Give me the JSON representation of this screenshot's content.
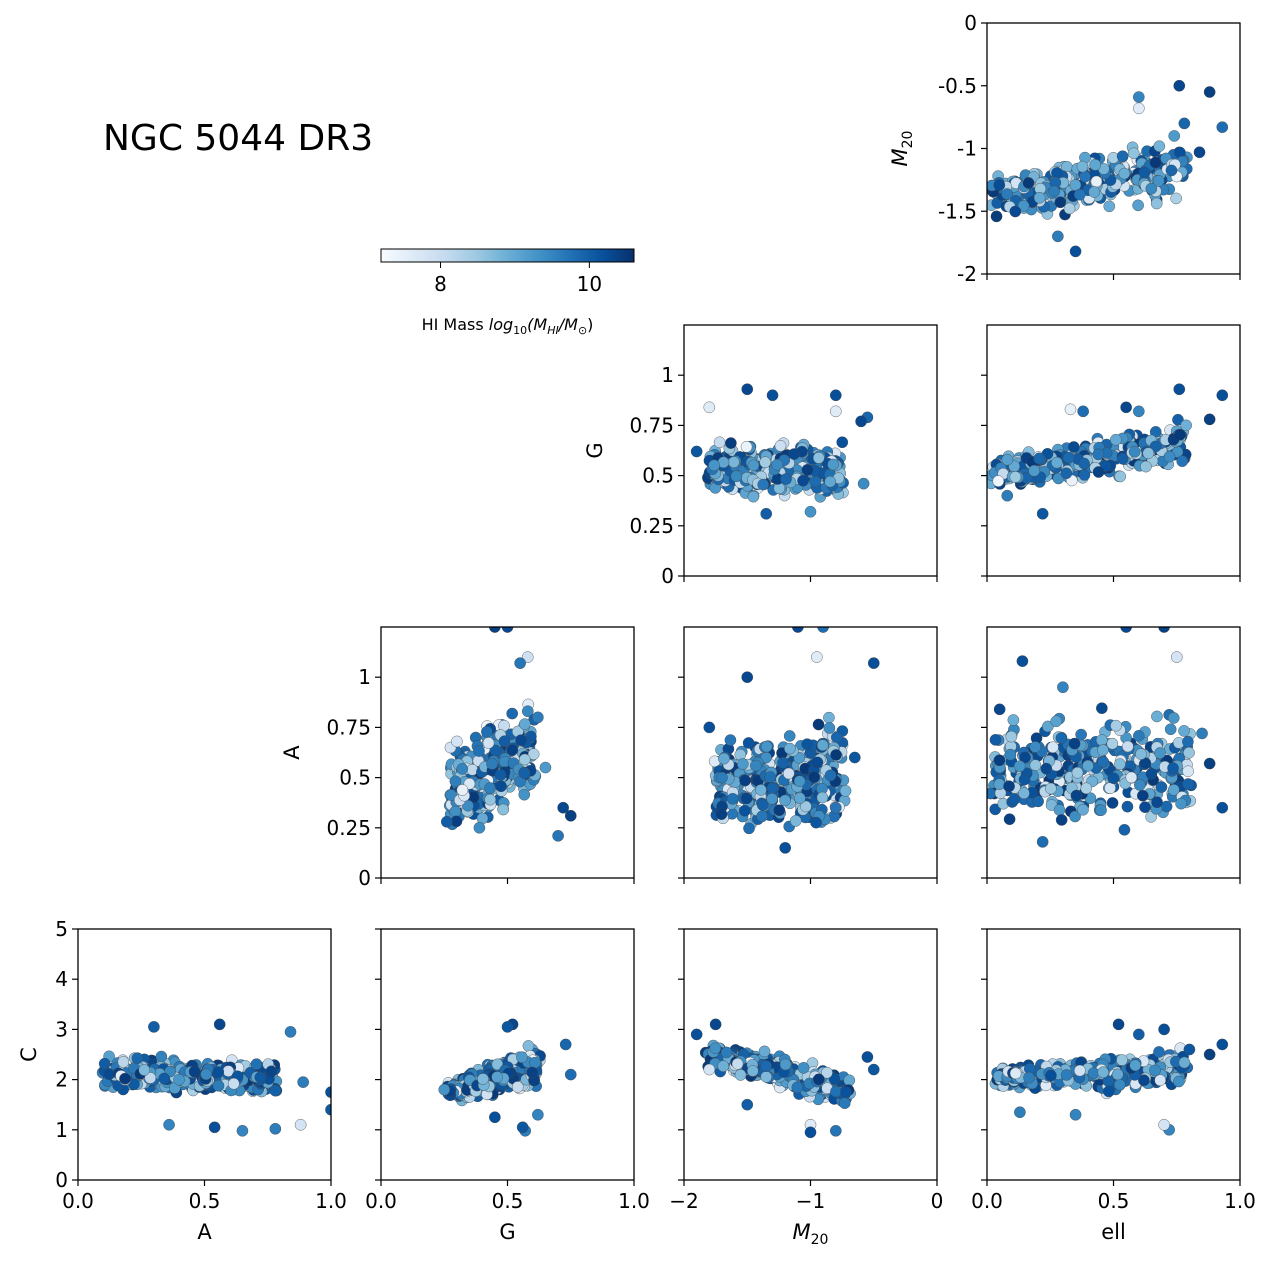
{
  "figure": {
    "title": "NGC 5044 DR3",
    "colormap": [
      "#f7fbff",
      "#deebf7",
      "#c6dbef",
      "#9ecae1",
      "#6baed6",
      "#4292c6",
      "#2171b5",
      "#08519c",
      "#08306b"
    ],
    "marker_edge_color": "#444444"
  },
  "colorbar": {
    "label_prefix": "HI Mass ",
    "label_func": "log",
    "label_sub": "10",
    "label_arg": "(M",
    "label_arg_sub": "HI",
    "label_mid": "/M",
    "label_sun": "⊙",
    "label_close": ")",
    "range": [
      7.2,
      10.6
    ],
    "ticks": [
      {
        "value": 8,
        "label": "8"
      },
      {
        "value": 10,
        "label": "10"
      }
    ]
  },
  "chart_data": [
    {
      "type": "scatter",
      "id": "M20_ell",
      "row": 0,
      "col": 3,
      "xlabel": "",
      "ylabel": "M",
      "ylabel_sub": "20",
      "xlim": [
        0,
        1
      ],
      "ylim": [
        -2,
        0
      ],
      "xticks": [
        {
          "value": 0,
          "label": ""
        },
        {
          "value": 0.5,
          "label": ""
        },
        {
          "value": 1,
          "label": ""
        }
      ],
      "yticks": [
        {
          "value": 0,
          "label": "0"
        },
        {
          "value": -0.5,
          "label": "-0.5"
        },
        {
          "value": -1,
          "label": "-1"
        },
        {
          "value": -1.5,
          "label": "-1.5"
        },
        {
          "value": -2,
          "label": "-2"
        }
      ],
      "cloud": {
        "x": [
          0.02,
          0.78
        ],
        "y_bottom": [
          -1.62,
          -1.45
        ],
        "y_top": [
          -1.15,
          -0.88
        ]
      },
      "points": [
        [
          0.76,
          -0.5,
          10.3
        ],
        [
          0.88,
          -0.55,
          10.4
        ],
        [
          0.93,
          -0.83,
          9.8
        ],
        [
          0.84,
          -1.03,
          10.3
        ],
        [
          0.6,
          -0.59,
          9.5
        ],
        [
          0.78,
          -0.8,
          9.9
        ],
        [
          0.35,
          -1.82,
          10.2
        ],
        [
          0.28,
          -1.7,
          9.6
        ],
        [
          0.6,
          -0.68,
          7.6
        ],
        [
          0.74,
          -0.9,
          9.2
        ]
      ]
    },
    {
      "type": "scatter",
      "id": "G_M20",
      "row": 1,
      "col": 2,
      "xlabel": "",
      "ylabel": "G",
      "xlim": [
        -2,
        0
      ],
      "ylim": [
        0,
        1.25
      ],
      "xticks": [
        {
          "value": -2,
          "label": ""
        },
        {
          "value": -1,
          "label": ""
        },
        {
          "value": 0,
          "label": ""
        }
      ],
      "yticks": [
        {
          "value": 0,
          "label": "0"
        },
        {
          "value": 0.25,
          "label": "0.25"
        },
        {
          "value": 0.5,
          "label": "0.5"
        },
        {
          "value": 0.75,
          "label": "0.75"
        },
        {
          "value": 1,
          "label": "1"
        }
      ],
      "cloud": {
        "x": [
          -1.8,
          -0.75
        ],
        "y_bottom": [
          0.38,
          0.34
        ],
        "y_top": [
          0.68,
          0.7
        ]
      },
      "points": [
        [
          -1.5,
          0.93,
          10.3
        ],
        [
          -1.3,
          0.9,
          10.2
        ],
        [
          -0.8,
          0.9,
          10.2
        ],
        [
          -0.55,
          0.79,
          9.9
        ],
        [
          -0.6,
          0.77,
          10.3
        ],
        [
          -1.8,
          0.84,
          7.6
        ],
        [
          -1.0,
          0.32,
          9.3
        ],
        [
          -1.35,
          0.31,
          10.0
        ],
        [
          -0.58,
          0.46,
          9.4
        ],
        [
          -1.9,
          0.62,
          10.1
        ],
        [
          -0.8,
          0.82,
          7.6
        ]
      ]
    },
    {
      "type": "scatter",
      "id": "G_ell",
      "row": 1,
      "col": 3,
      "xlabel": "",
      "ylabel": "",
      "xlim": [
        0,
        1
      ],
      "ylim": [
        0,
        1.25
      ],
      "xticks": [
        {
          "value": 0,
          "label": ""
        },
        {
          "value": 0.5,
          "label": ""
        },
        {
          "value": 1,
          "label": ""
        }
      ],
      "yticks": [
        {
          "value": 0,
          "label": ""
        },
        {
          "value": 0.25,
          "label": ""
        },
        {
          "value": 0.5,
          "label": ""
        },
        {
          "value": 0.75,
          "label": ""
        },
        {
          "value": 1,
          "label": ""
        }
      ],
      "cloud": {
        "x": [
          0.02,
          0.78
        ],
        "y_bottom": [
          0.4,
          0.5
        ],
        "y_top": [
          0.6,
          0.82
        ]
      },
      "points": [
        [
          0.93,
          0.9,
          10.2
        ],
        [
          0.76,
          0.93,
          10.2
        ],
        [
          0.88,
          0.78,
          10.4
        ],
        [
          0.55,
          0.84,
          10.3
        ],
        [
          0.6,
          0.82,
          9.5
        ],
        [
          0.33,
          0.83,
          7.5
        ],
        [
          0.22,
          0.31,
          10.1
        ],
        [
          0.08,
          0.4,
          9.6
        ],
        [
          0.38,
          0.82,
          9.8
        ]
      ]
    },
    {
      "type": "scatter",
      "id": "A_G",
      "row": 2,
      "col": 1,
      "xlabel": "",
      "ylabel": "A",
      "xlim": [
        0,
        1
      ],
      "ylim": [
        0,
        1.25
      ],
      "xticks": [
        {
          "value": 0,
          "label": ""
        },
        {
          "value": 0.5,
          "label": ""
        },
        {
          "value": 1,
          "label": ""
        }
      ],
      "yticks": [
        {
          "value": 0,
          "label": "0"
        },
        {
          "value": 0.25,
          "label": "0.25"
        },
        {
          "value": 0.5,
          "label": "0.5"
        },
        {
          "value": 0.75,
          "label": "0.75"
        },
        {
          "value": 1,
          "label": "1"
        }
      ],
      "cloud": {
        "x": [
          0.28,
          0.6
        ],
        "y_bottom": [
          0.17,
          0.35
        ],
        "y_top": [
          0.68,
          0.95
        ]
      },
      "points": [
        [
          0.45,
          1.25,
          10.4
        ],
        [
          0.5,
          1.25,
          10.3
        ],
        [
          0.58,
          1.1,
          7.9
        ],
        [
          0.55,
          1.07,
          9.7
        ],
        [
          0.62,
          0.8,
          9.6
        ],
        [
          0.72,
          0.35,
          10.3
        ],
        [
          0.75,
          0.31,
          10.4
        ],
        [
          0.7,
          0.21,
          9.7
        ],
        [
          0.26,
          0.28,
          10.0
        ],
        [
          0.65,
          0.55,
          9.2
        ],
        [
          0.3,
          0.68,
          7.8
        ]
      ]
    },
    {
      "type": "scatter",
      "id": "A_M20",
      "row": 2,
      "col": 2,
      "xlabel": "",
      "ylabel": "",
      "xlim": [
        -2,
        0
      ],
      "ylim": [
        0,
        1.25
      ],
      "xticks": [
        {
          "value": -2,
          "label": ""
        },
        {
          "value": -1,
          "label": ""
        },
        {
          "value": 0,
          "label": ""
        }
      ],
      "yticks": [
        {
          "value": 0,
          "label": ""
        },
        {
          "value": 0.25,
          "label": ""
        },
        {
          "value": 0.5,
          "label": ""
        },
        {
          "value": 0.75,
          "label": ""
        },
        {
          "value": 1,
          "label": ""
        }
      ],
      "cloud": {
        "x": [
          -1.75,
          -0.75
        ],
        "y_bottom": [
          0.2,
          0.18
        ],
        "y_top": [
          0.72,
          0.85
        ]
      },
      "points": [
        [
          -1.1,
          1.25,
          10.3
        ],
        [
          -0.9,
          1.25,
          9.8
        ],
        [
          -0.5,
          1.07,
          10.2
        ],
        [
          -1.5,
          1.0,
          10.3
        ],
        [
          -1.8,
          0.75,
          10.2
        ],
        [
          -0.65,
          0.6,
          10.1
        ],
        [
          -0.8,
          0.35,
          9.7
        ],
        [
          -1.2,
          0.15,
          10.2
        ],
        [
          -1.7,
          0.5,
          9.6
        ],
        [
          -0.95,
          1.1,
          7.6
        ]
      ]
    },
    {
      "type": "scatter",
      "id": "A_ell",
      "row": 2,
      "col": 3,
      "xlabel": "",
      "ylabel": "",
      "xlim": [
        0,
        1
      ],
      "ylim": [
        0,
        1.25
      ],
      "xticks": [
        {
          "value": 0,
          "label": ""
        },
        {
          "value": 0.5,
          "label": ""
        },
        {
          "value": 1,
          "label": ""
        }
      ],
      "yticks": [
        {
          "value": 0,
          "label": ""
        },
        {
          "value": 0.25,
          "label": ""
        },
        {
          "value": 0.5,
          "label": ""
        },
        {
          "value": 0.75,
          "label": ""
        },
        {
          "value": 1,
          "label": ""
        }
      ],
      "cloud": {
        "x": [
          0.02,
          0.8
        ],
        "y_bottom": [
          0.2,
          0.2
        ],
        "y_top": [
          0.85,
          0.95
        ]
      },
      "points": [
        [
          0.55,
          1.25,
          10.3
        ],
        [
          0.7,
          1.25,
          10.4
        ],
        [
          0.75,
          1.1,
          7.8
        ],
        [
          0.93,
          0.35,
          10.2
        ],
        [
          0.88,
          0.57,
          10.4
        ],
        [
          0.85,
          0.72,
          9.6
        ],
        [
          0.05,
          0.84,
          10.3
        ],
        [
          0.14,
          1.08,
          10.2
        ],
        [
          0.3,
          0.95,
          9.5
        ],
        [
          0.22,
          0.18,
          9.8
        ]
      ]
    },
    {
      "type": "scatter",
      "id": "C_A",
      "row": 3,
      "col": 0,
      "xlabel": "A",
      "ylabel": "C",
      "xlim": [
        0,
        1
      ],
      "ylim": [
        0,
        5
      ],
      "xticks": [
        {
          "value": 0,
          "label": "0.0"
        },
        {
          "value": 0.5,
          "label": "0.5"
        },
        {
          "value": 1,
          "label": "1.0"
        }
      ],
      "yticks": [
        {
          "value": 0,
          "label": "0"
        },
        {
          "value": 1,
          "label": "1"
        },
        {
          "value": 2,
          "label": "2"
        },
        {
          "value": 3,
          "label": "3"
        },
        {
          "value": 4,
          "label": "4"
        },
        {
          "value": 5,
          "label": "5"
        }
      ],
      "cloud": {
        "x": [
          0.1,
          0.78
        ],
        "y_bottom": [
          1.7,
          1.6
        ],
        "y_top": [
          2.55,
          2.45
        ]
      },
      "points": [
        [
          0.3,
          3.05,
          10.0
        ],
        [
          0.56,
          3.1,
          10.3
        ],
        [
          0.84,
          2.95,
          9.6
        ],
        [
          1.0,
          1.75,
          10.2
        ],
        [
          1.0,
          1.4,
          10.1
        ],
        [
          0.88,
          1.1,
          7.8
        ],
        [
          0.65,
          0.98,
          9.5
        ],
        [
          0.78,
          1.02,
          9.6
        ],
        [
          0.54,
          1.05,
          10.2
        ],
        [
          0.36,
          1.1,
          9.5
        ],
        [
          0.89,
          1.95,
          9.6
        ]
      ]
    },
    {
      "type": "scatter",
      "id": "C_G",
      "row": 3,
      "col": 1,
      "xlabel": "G",
      "ylabel": "",
      "xlim": [
        0,
        1
      ],
      "ylim": [
        0,
        5
      ],
      "xticks": [
        {
          "value": 0,
          "label": "0.0"
        },
        {
          "value": 0.5,
          "label": "0.5"
        },
        {
          "value": 1,
          "label": "1.0"
        }
      ],
      "yticks": [
        {
          "value": 0,
          "label": ""
        },
        {
          "value": 1,
          "label": ""
        },
        {
          "value": 2,
          "label": ""
        },
        {
          "value": 3,
          "label": ""
        },
        {
          "value": 4,
          "label": ""
        },
        {
          "value": 5,
          "label": ""
        }
      ],
      "cloud": {
        "x": [
          0.27,
          0.62
        ],
        "y_bottom": [
          1.5,
          1.7
        ],
        "y_top": [
          2.0,
          2.9
        ]
      },
      "points": [
        [
          0.52,
          3.1,
          10.3
        ],
        [
          0.5,
          3.05,
          10.1
        ],
        [
          0.73,
          2.7,
          9.9
        ],
        [
          0.75,
          2.1,
          9.8
        ],
        [
          0.57,
          0.98,
          9.6
        ],
        [
          0.56,
          1.05,
          10.1
        ],
        [
          0.45,
          1.25,
          10.2
        ],
        [
          0.25,
          1.8,
          9.3
        ],
        [
          0.62,
          1.3,
          9.5
        ]
      ]
    },
    {
      "type": "scatter",
      "id": "C_M20",
      "row": 3,
      "col": 2,
      "xlabel": "M",
      "xlabel_sub": "20",
      "ylabel": "",
      "xlim": [
        -2,
        0
      ],
      "ylim": [
        0,
        5
      ],
      "xticks": [
        {
          "value": -2,
          "label": "−2"
        },
        {
          "value": -1,
          "label": "−1"
        },
        {
          "value": 0,
          "label": "0"
        }
      ],
      "yticks": [
        {
          "value": 0,
          "label": ""
        },
        {
          "value": 1,
          "label": ""
        },
        {
          "value": 2,
          "label": ""
        },
        {
          "value": 3,
          "label": ""
        },
        {
          "value": 4,
          "label": ""
        },
        {
          "value": 5,
          "label": ""
        }
      ],
      "cloud": {
        "x": [
          -1.8,
          -0.7
        ],
        "y_bottom": [
          2.15,
          1.35
        ],
        "y_top": [
          2.85,
          2.2
        ]
      },
      "points": [
        [
          -1.75,
          3.1,
          10.3
        ],
        [
          -1.9,
          2.9,
          10.2
        ],
        [
          -0.55,
          2.45,
          10.2
        ],
        [
          -0.5,
          2.2,
          10.1
        ],
        [
          -1.0,
          1.1,
          7.6
        ],
        [
          -1.0,
          0.95,
          10.2
        ],
        [
          -0.8,
          0.98,
          9.7
        ],
        [
          -1.5,
          1.5,
          10.0
        ],
        [
          -1.8,
          2.2,
          7.8
        ]
      ]
    },
    {
      "type": "scatter",
      "id": "C_ell",
      "row": 3,
      "col": 3,
      "xlabel": "ell",
      "ylabel": "",
      "xlim": [
        0,
        1
      ],
      "ylim": [
        0,
        5
      ],
      "xticks": [
        {
          "value": 0,
          "label": "0.0"
        },
        {
          "value": 0.5,
          "label": "0.5"
        },
        {
          "value": 1,
          "label": "1.0"
        }
      ],
      "yticks": [
        {
          "value": 0,
          "label": ""
        },
        {
          "value": 1,
          "label": ""
        },
        {
          "value": 2,
          "label": ""
        },
        {
          "value": 3,
          "label": ""
        },
        {
          "value": 4,
          "label": ""
        },
        {
          "value": 5,
          "label": ""
        }
      ],
      "cloud": {
        "x": [
          0.03,
          0.78
        ],
        "y_bottom": [
          1.75,
          1.65
        ],
        "y_top": [
          2.3,
          2.75
        ]
      },
      "points": [
        [
          0.52,
          3.1,
          10.3
        ],
        [
          0.7,
          3.0,
          10.2
        ],
        [
          0.93,
          2.7,
          10.2
        ],
        [
          0.88,
          2.5,
          10.4
        ],
        [
          0.6,
          2.9,
          10.0
        ],
        [
          0.13,
          1.35,
          9.6
        ],
        [
          0.72,
          1.0,
          9.5
        ],
        [
          0.7,
          1.1,
          7.8
        ],
        [
          0.35,
          1.3,
          9.5
        ],
        [
          0.8,
          2.6,
          10.1
        ]
      ]
    }
  ]
}
